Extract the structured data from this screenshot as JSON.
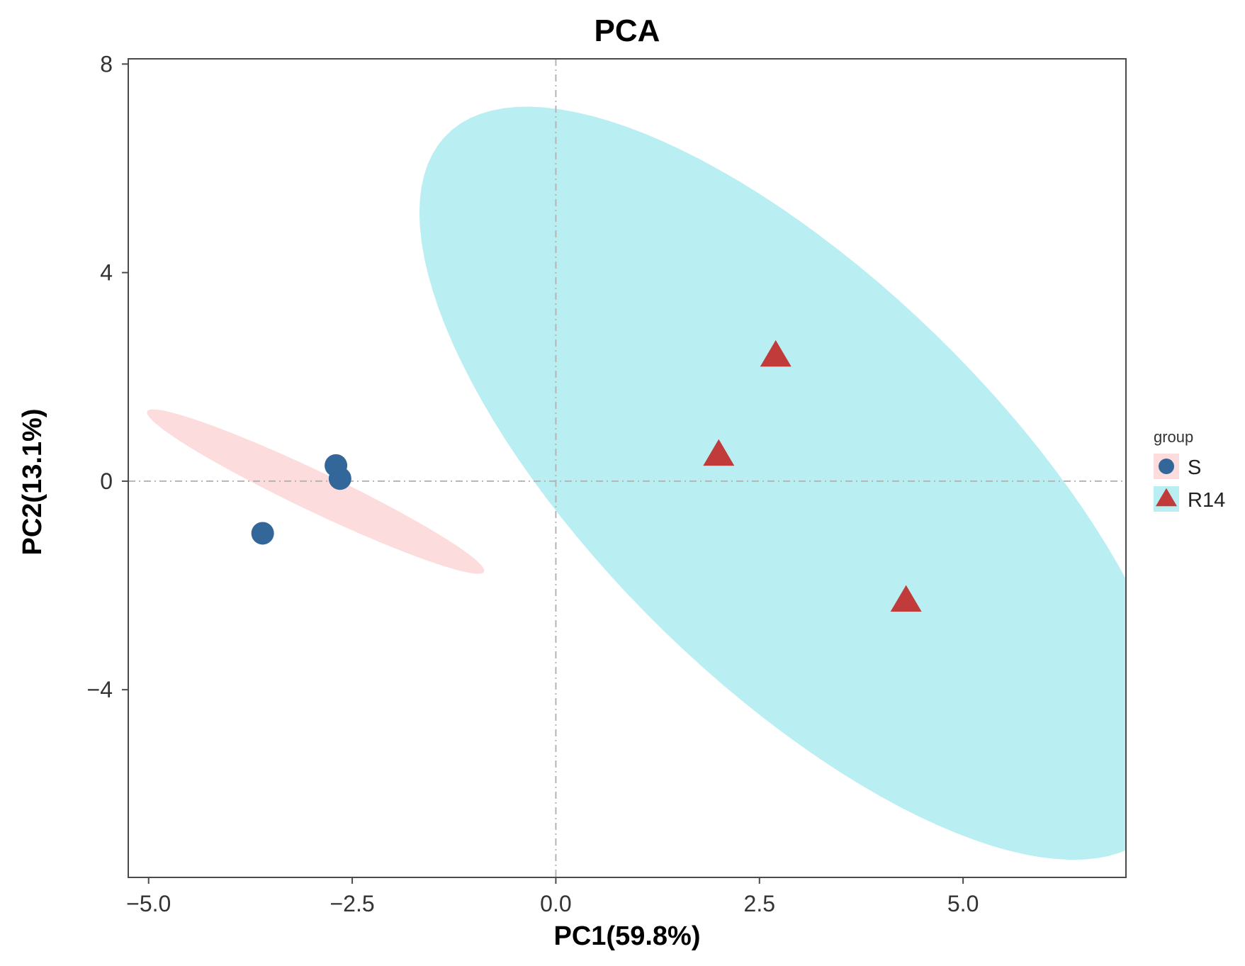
{
  "chart_data": {
    "type": "scatter",
    "title": "PCA",
    "xlabel": "PC1(59.8%)",
    "ylabel": "PC2(13.1%)",
    "xlim": [
      -5.25,
      7.0
    ],
    "ylim": [
      -7.6,
      8.1
    ],
    "x_ticks": [
      -5.0,
      -2.5,
      0.0,
      2.5,
      5.0
    ],
    "x_tick_labels": [
      "−5.0",
      "−2.5",
      "0.0",
      "2.5",
      "5.0"
    ],
    "y_ticks": [
      8,
      4,
      0,
      -4
    ],
    "y_tick_labels": [
      "8",
      "4",
      "0",
      "−4"
    ],
    "reference_lines": {
      "x": 0,
      "y": 0,
      "style": "dot-dash"
    },
    "legend": {
      "title": "group",
      "position": "right"
    },
    "series": [
      {
        "name": "S",
        "marker": "circle",
        "color": "#336699",
        "ellipse_color": "#fcdcdc",
        "ellipse": {
          "cx": -2.95,
          "cy": -0.2,
          "a": 2.58,
          "b": 0.34,
          "angle_deg": -37
        },
        "points": [
          {
            "x": -2.7,
            "y": 0.3
          },
          {
            "x": -2.65,
            "y": 0.05
          },
          {
            "x": -3.6,
            "y": -1.0
          }
        ]
      },
      {
        "name": "R14",
        "marker": "triangle",
        "color": "#c23b3b",
        "ellipse_color": "#b9eff2",
        "ellipse": {
          "cx": 3.0,
          "cy": -0.04,
          "a": 8.1,
          "b": 2.9,
          "angle_deg": -61
        },
        "points": [
          {
            "x": 2.7,
            "y": 2.4
          },
          {
            "x": 2.0,
            "y": 0.5
          },
          {
            "x": 4.3,
            "y": -2.3
          }
        ]
      }
    ]
  }
}
